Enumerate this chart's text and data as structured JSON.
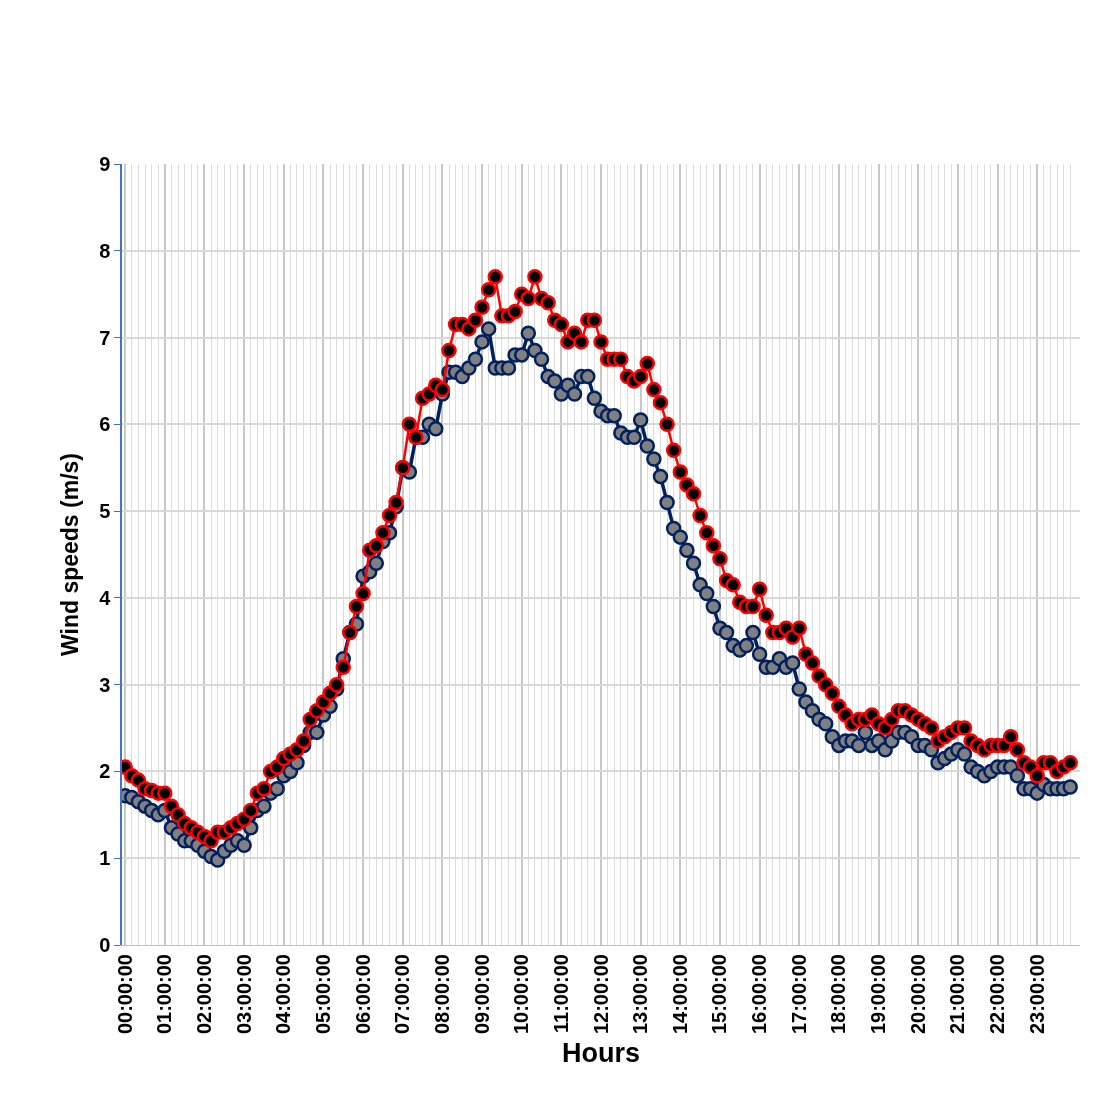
{
  "chart_data": {
    "type": "line",
    "xlabel": "Hours",
    "ylabel": "Wind speeds (m/s)",
    "x": [
      0,
      0.167,
      0.333,
      0.5,
      0.667,
      0.833,
      1,
      1.167,
      1.333,
      1.5,
      1.667,
      1.833,
      2,
      2.167,
      2.333,
      2.5,
      2.667,
      2.833,
      3,
      3.167,
      3.333,
      3.5,
      3.667,
      3.833,
      4,
      4.167,
      4.333,
      4.5,
      4.667,
      4.833,
      5,
      5.167,
      5.333,
      5.5,
      5.667,
      5.833,
      6,
      6.167,
      6.333,
      6.5,
      6.667,
      6.833,
      7,
      7.167,
      7.333,
      7.5,
      7.667,
      7.833,
      8,
      8.167,
      8.333,
      8.5,
      8.667,
      8.833,
      9,
      9.167,
      9.333,
      9.5,
      9.667,
      9.833,
      10,
      10.167,
      10.333,
      10.5,
      10.667,
      10.833,
      11,
      11.167,
      11.333,
      11.5,
      11.667,
      11.833,
      12,
      12.167,
      12.333,
      12.5,
      12.667,
      12.833,
      13,
      13.167,
      13.333,
      13.5,
      13.667,
      13.833,
      14,
      14.167,
      14.333,
      14.5,
      14.667,
      14.833,
      15,
      15.167,
      15.333,
      15.5,
      15.667,
      15.833,
      16,
      16.167,
      16.333,
      16.5,
      16.667,
      16.833,
      17,
      17.167,
      17.333,
      17.5,
      17.667,
      17.833,
      18,
      18.167,
      18.333,
      18.5,
      18.667,
      18.833,
      19,
      19.167,
      19.333,
      19.5,
      19.667,
      19.833,
      20,
      20.167,
      20.333,
      20.5,
      20.667,
      20.833,
      21,
      21.167,
      21.333,
      21.5,
      21.667,
      21.833,
      22,
      22.167,
      22.333,
      22.5,
      22.667,
      22.833,
      23,
      23.167,
      23.333,
      23.5,
      23.667,
      23.833
    ],
    "series": [
      {
        "color": "#002060",
        "values": [
          1.72,
          1.7,
          1.65,
          1.6,
          1.55,
          1.5,
          1.55,
          1.35,
          1.28,
          1.2,
          1.2,
          1.15,
          1.08,
          1.02,
          0.98,
          1.08,
          1.15,
          1.2,
          1.15,
          1.35,
          1.55,
          1.6,
          1.75,
          1.8,
          1.95,
          2.0,
          2.1,
          2.3,
          2.45,
          2.45,
          2.65,
          2.75,
          2.95,
          3.3,
          3.6,
          3.7,
          4.25,
          4.3,
          4.4,
          4.65,
          4.75,
          5.05,
          5.5,
          5.45,
          5.85,
          5.85,
          6.0,
          5.95,
          6.35,
          6.6,
          6.6,
          6.55,
          6.65,
          6.75,
          6.95,
          7.1,
          6.65,
          6.65,
          6.65,
          6.8,
          6.8,
          7.05,
          6.85,
          6.75,
          6.55,
          6.5,
          6.35,
          6.45,
          6.35,
          6.55,
          6.55,
          6.3,
          6.15,
          6.1,
          6.1,
          5.9,
          5.85,
          5.85,
          6.05,
          5.75,
          5.6,
          5.4,
          5.1,
          4.8,
          4.7,
          4.55,
          4.4,
          4.15,
          4.05,
          3.9,
          3.65,
          3.6,
          3.45,
          3.4,
          3.45,
          3.6,
          3.35,
          3.2,
          3.2,
          3.3,
          3.2,
          3.25,
          2.95,
          2.8,
          2.7,
          2.6,
          2.55,
          2.4,
          2.3,
          2.35,
          2.35,
          2.3,
          2.45,
          2.3,
          2.35,
          2.25,
          2.35,
          2.45,
          2.45,
          2.4,
          2.3,
          2.3,
          2.25,
          2.1,
          2.15,
          2.2,
          2.25,
          2.2,
          2.05,
          2.0,
          1.95,
          2.0,
          2.05,
          2.05,
          2.05,
          1.95,
          1.8,
          1.8,
          1.75,
          1.85,
          1.8,
          1.8,
          1.8,
          1.82
        ]
      },
      {
        "color": "#ff0000",
        "values": [
          2.05,
          1.95,
          1.9,
          1.8,
          1.78,
          1.75,
          1.75,
          1.6,
          1.5,
          1.4,
          1.35,
          1.3,
          1.25,
          1.2,
          1.3,
          1.3,
          1.35,
          1.4,
          1.45,
          1.55,
          1.75,
          1.8,
          2.0,
          2.05,
          2.15,
          2.2,
          2.25,
          2.35,
          2.6,
          2.7,
          2.8,
          2.9,
          3.0,
          3.2,
          3.6,
          3.9,
          4.05,
          4.55,
          4.6,
          4.75,
          4.95,
          5.1,
          5.5,
          6.0,
          5.85,
          6.3,
          6.35,
          6.45,
          6.4,
          6.85,
          7.15,
          7.15,
          7.1,
          7.2,
          7.35,
          7.55,
          7.7,
          7.25,
          7.25,
          7.3,
          7.5,
          7.45,
          7.7,
          7.45,
          7.4,
          7.2,
          7.15,
          6.95,
          7.05,
          6.95,
          7.2,
          7.2,
          6.95,
          6.75,
          6.75,
          6.75,
          6.55,
          6.5,
          6.55,
          6.7,
          6.4,
          6.25,
          6.0,
          5.7,
          5.45,
          5.3,
          5.2,
          4.95,
          4.75,
          4.6,
          4.45,
          4.2,
          4.15,
          3.95,
          3.9,
          3.9,
          4.1,
          3.8,
          3.6,
          3.6,
          3.65,
          3.55,
          3.65,
          3.35,
          3.25,
          3.1,
          3.0,
          2.9,
          2.75,
          2.65,
          2.55,
          2.6,
          2.6,
          2.65,
          2.55,
          2.5,
          2.6,
          2.7,
          2.7,
          2.65,
          2.6,
          2.55,
          2.5,
          2.35,
          2.4,
          2.45,
          2.5,
          2.5,
          2.35,
          2.3,
          2.25,
          2.3,
          2.3,
          2.3,
          2.4,
          2.25,
          2.1,
          2.05,
          1.95,
          2.1,
          2.1,
          2.0,
          2.05,
          2.1
        ]
      }
    ],
    "xlim": [
      -0.08,
      24.08
    ],
    "xticks": [
      {
        "value": 0,
        "label": "00:00:00"
      },
      {
        "value": 1,
        "label": "01:00:00"
      },
      {
        "value": 2,
        "label": "02:00:00"
      },
      {
        "value": 3,
        "label": "03:00:00"
      },
      {
        "value": 4,
        "label": "04:00:00"
      },
      {
        "value": 5,
        "label": "05:00:00"
      },
      {
        "value": 6,
        "label": "06:00:00"
      },
      {
        "value": 7,
        "label": "07:00:00"
      },
      {
        "value": 8,
        "label": "08:00:00"
      },
      {
        "value": 9,
        "label": "09:00:00"
      },
      {
        "value": 10,
        "label": "10:00:00"
      },
      {
        "value": 11,
        "label": "11:00:00"
      },
      {
        "value": 12,
        "label": "12:00:00"
      },
      {
        "value": 13,
        "label": "13:00:00"
      },
      {
        "value": 14,
        "label": "14:00:00"
      },
      {
        "value": 15,
        "label": "15:00:00"
      },
      {
        "value": 16,
        "label": "16:00:00"
      },
      {
        "value": 17,
        "label": "17:00:00"
      },
      {
        "value": 18,
        "label": "18:00:00"
      },
      {
        "value": 19,
        "label": "19:00:00"
      },
      {
        "value": 20,
        "label": "20:00:00"
      },
      {
        "value": 21,
        "label": "21:00:00"
      },
      {
        "value": 22,
        "label": "22:00:00"
      },
      {
        "value": 23,
        "label": "23:00:00"
      }
    ],
    "ylim": [
      0,
      9
    ],
    "yticks": [
      0,
      1,
      2,
      3,
      4,
      5,
      6,
      7,
      8,
      9
    ],
    "grid": true,
    "legend": false,
    "marker": "circle",
    "line_style": "solid"
  }
}
